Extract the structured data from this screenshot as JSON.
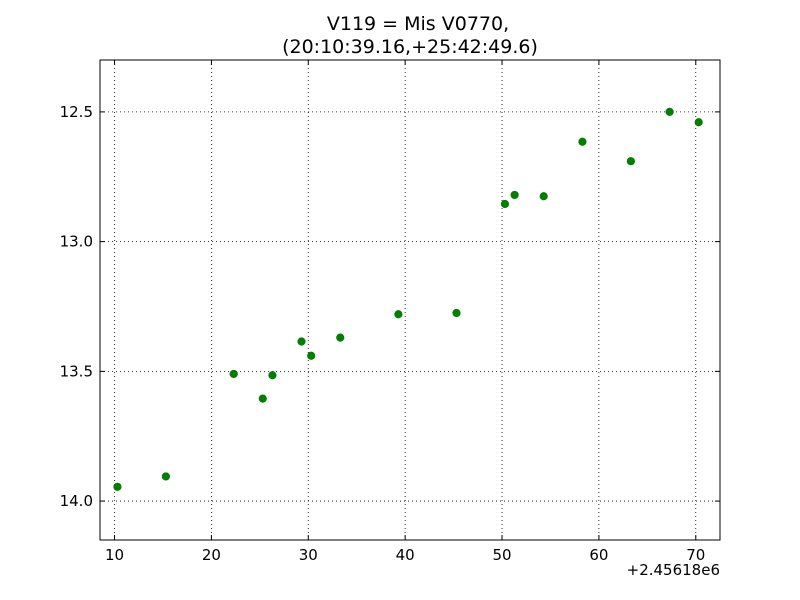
{
  "chart_data": {
    "type": "scatter",
    "title_line1": "V119 = Mis V0770,",
    "title_line2": "(20:10:39.16,+25:42:49.6)",
    "x_offset_label": "+2.45618e6",
    "xlim": [
      8.5,
      72.5
    ],
    "ylim": [
      14.15,
      12.3
    ],
    "y_inverted": true,
    "grid": true,
    "marker_color": "#007f00",
    "x_ticks": [
      10,
      20,
      30,
      40,
      50,
      60,
      70
    ],
    "x_tick_labels": [
      "10",
      "20",
      "30",
      "40",
      "50",
      "60",
      "70"
    ],
    "y_ticks": [
      12.5,
      13.0,
      13.5,
      14.0
    ],
    "y_tick_labels": [
      "12.5",
      "13.0",
      "13.5",
      "14.0"
    ],
    "points": [
      {
        "x": 10.3,
        "y": 13.945
      },
      {
        "x": 15.3,
        "y": 13.905
      },
      {
        "x": 22.3,
        "y": 13.51
      },
      {
        "x": 25.3,
        "y": 13.605
      },
      {
        "x": 26.3,
        "y": 13.515
      },
      {
        "x": 29.3,
        "y": 13.385
      },
      {
        "x": 30.3,
        "y": 13.44
      },
      {
        "x": 33.3,
        "y": 13.37
      },
      {
        "x": 39.3,
        "y": 13.28
      },
      {
        "x": 45.3,
        "y": 13.275
      },
      {
        "x": 50.3,
        "y": 12.855
      },
      {
        "x": 51.3,
        "y": 12.82
      },
      {
        "x": 54.3,
        "y": 12.825
      },
      {
        "x": 58.3,
        "y": 12.615
      },
      {
        "x": 63.3,
        "y": 12.69
      },
      {
        "x": 67.3,
        "y": 12.5
      },
      {
        "x": 70.3,
        "y": 12.54
      }
    ]
  }
}
